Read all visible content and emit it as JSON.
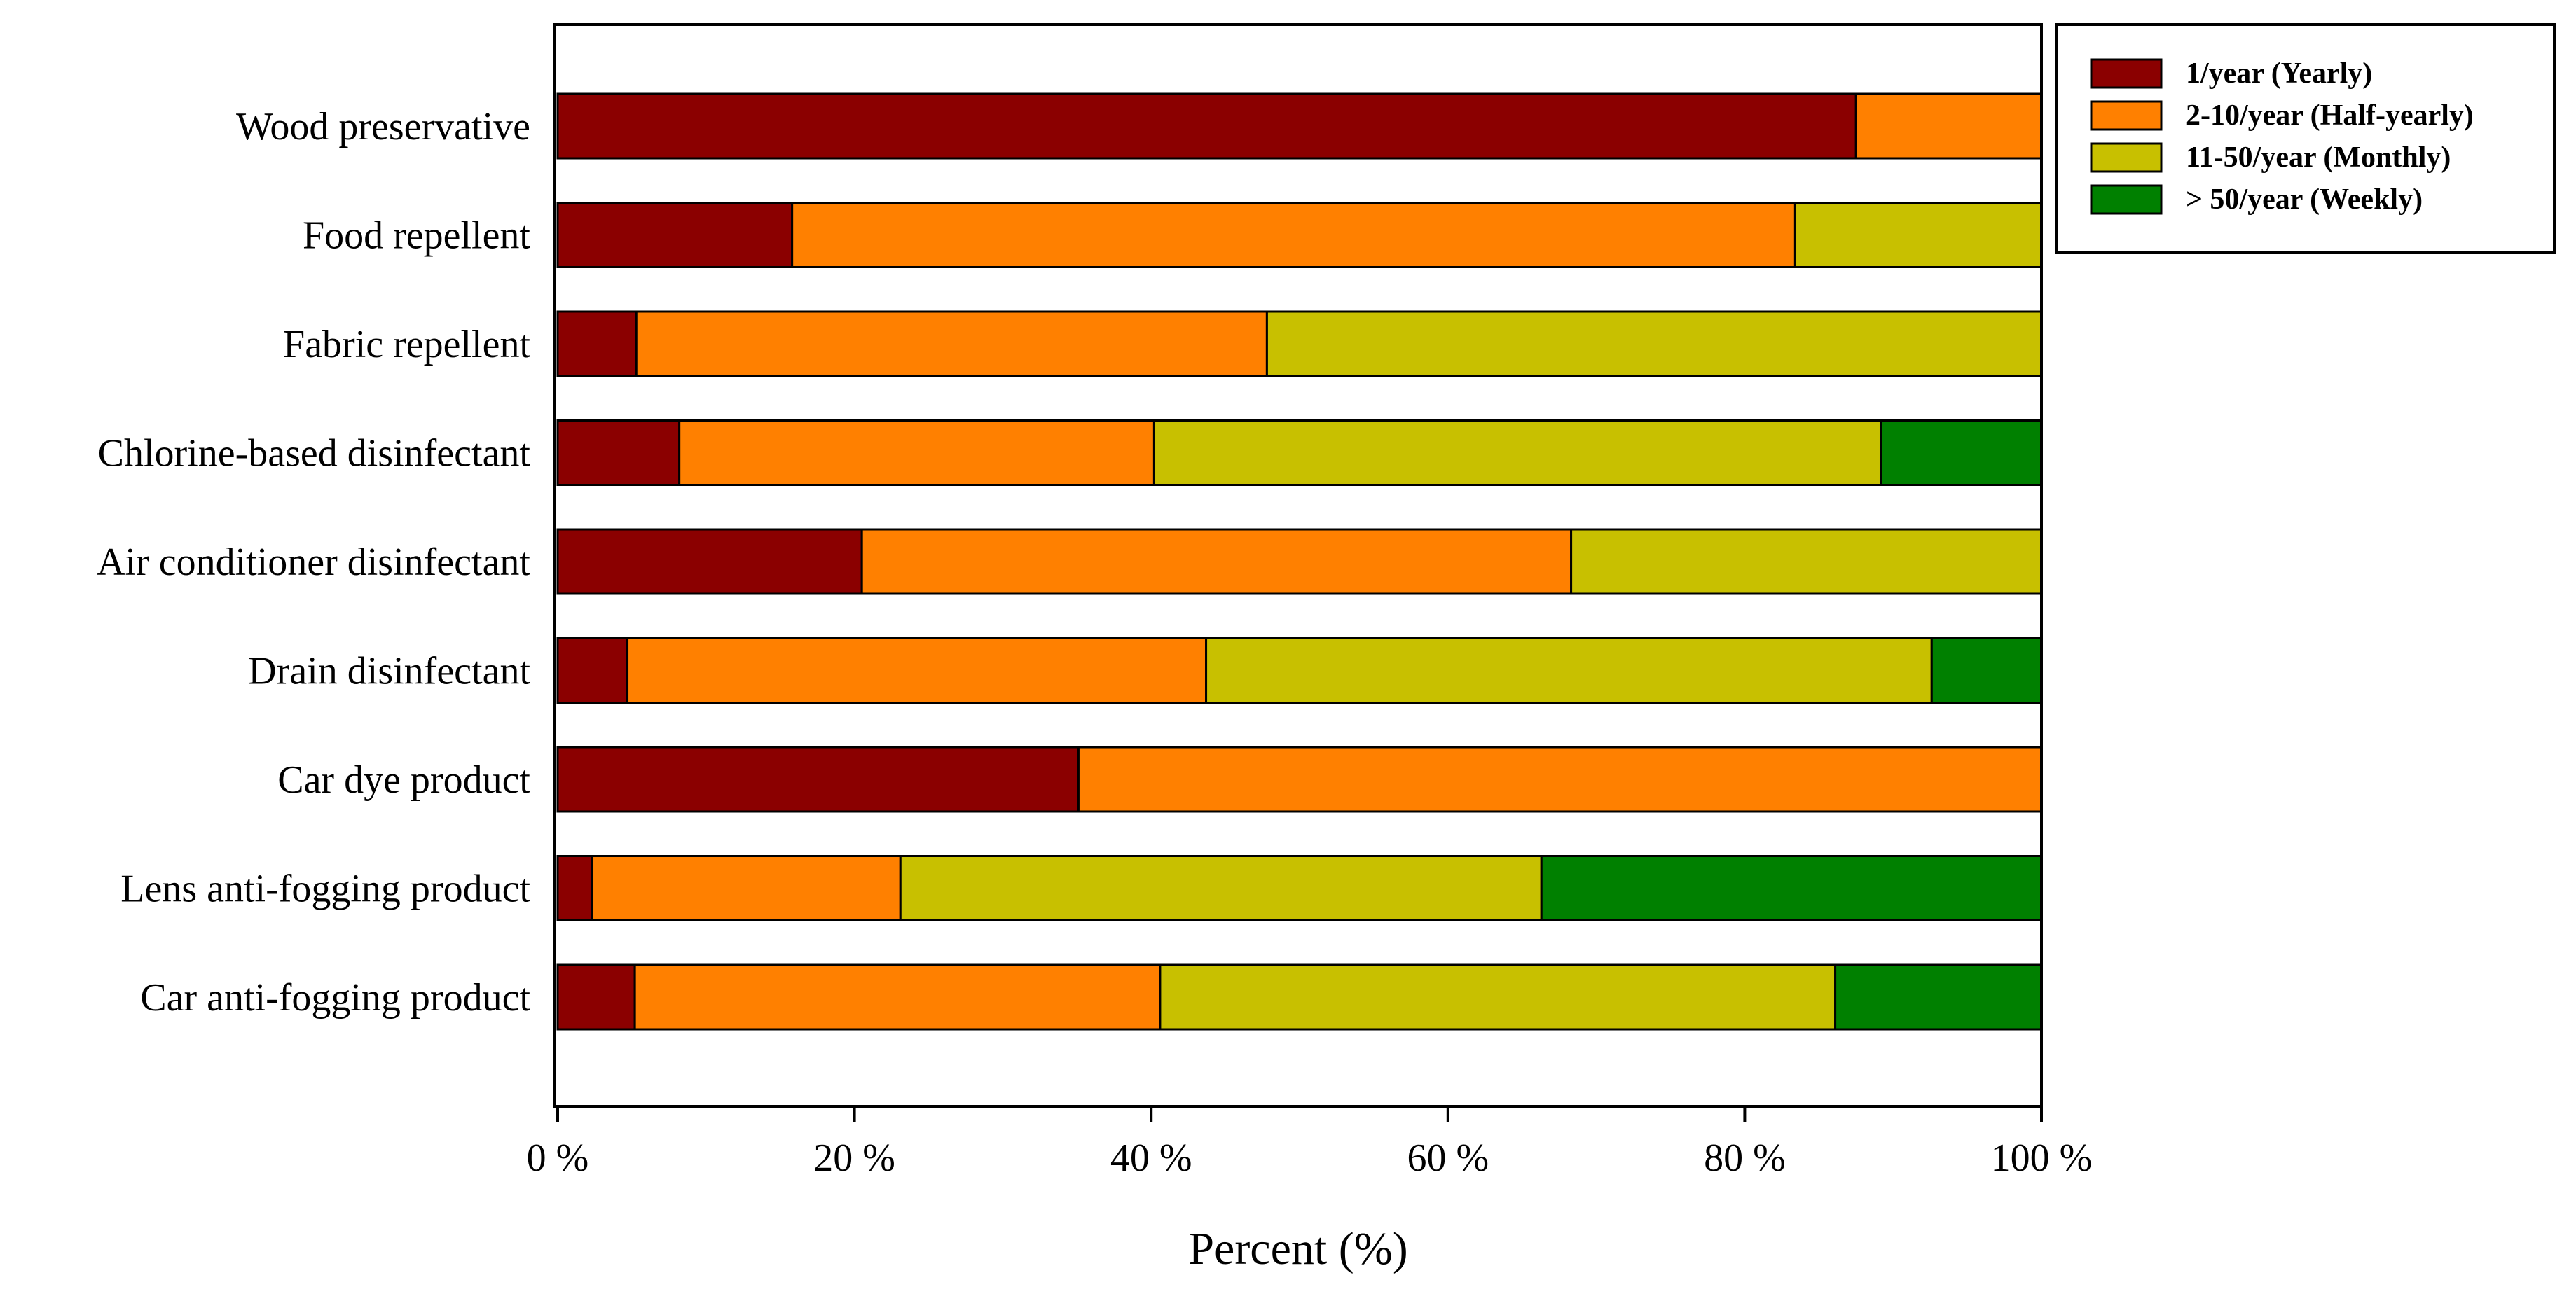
{
  "chart_data": {
    "type": "bar",
    "orientation": "horizontal",
    "stacked": true,
    "categories": [
      "Wood preservative",
      "Food repellent",
      "Fabric repellent",
      "Chlorine-based disinfectant",
      "Air conditioner disinfectant",
      "Drain disinfectant",
      "Car dye product",
      "Lens anti-fogging product",
      "Car anti-fogging product"
    ],
    "series": [
      {
        "name": "1/year (Yearly)",
        "color": "#8B0000",
        "values": [
          87.5,
          15.8,
          5.3,
          8.2,
          20.5,
          4.7,
          35.1,
          2.3,
          5.2
        ]
      },
      {
        "name": "2-10/year (Half-yearly)",
        "color": "#FF8000",
        "values": [
          12.5,
          67.6,
          42.5,
          32.0,
          47.8,
          39.0,
          64.9,
          20.8,
          35.4
        ]
      },
      {
        "name": "11-50/year (Monthly)",
        "color": "#C8C000",
        "values": [
          0,
          16.6,
          52.2,
          49.0,
          31.7,
          48.9,
          0,
          43.2,
          45.5
        ]
      },
      {
        "name": "> 50/year  (Weekly)",
        "color": "#008000",
        "values": [
          0,
          0,
          0,
          10.8,
          0,
          7.4,
          0,
          33.7,
          13.9
        ]
      }
    ],
    "xlabel": "Percent (%)",
    "xlim": [
      0,
      100
    ],
    "xticks": [
      "0 %",
      "20 %",
      "40 %",
      "60 %",
      "80 %",
      "100 %"
    ],
    "xtick_values": [
      0,
      20,
      40,
      60,
      80,
      100
    ],
    "legend_position": "top-right, outside plot"
  }
}
